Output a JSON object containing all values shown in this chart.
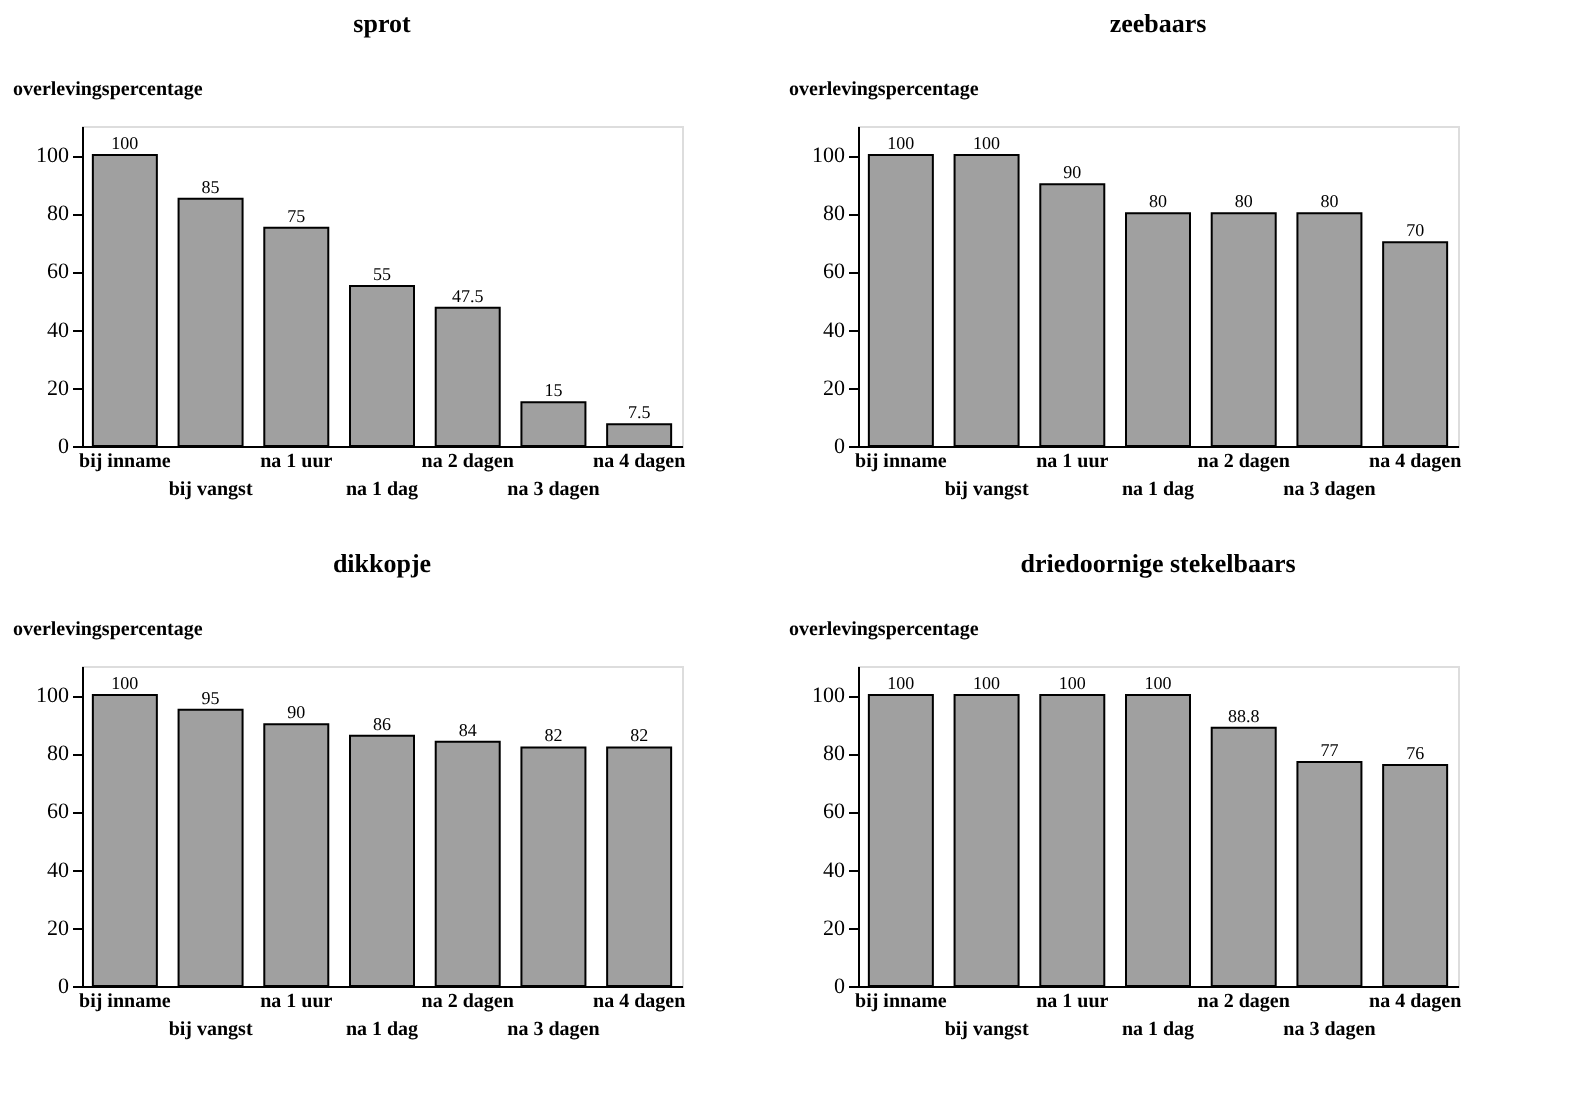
{
  "chart_data": [
    {
      "type": "bar",
      "title": "sprot",
      "ylabel": "overlevingspercentage",
      "categories": [
        "bij inname",
        "bij vangst",
        "na 1 uur",
        "na 1 dag",
        "na 2 dagen",
        "na 3 dagen",
        "na 4 dagen"
      ],
      "values": [
        100,
        85,
        75,
        55,
        47.5,
        15,
        7.5
      ],
      "color": "#a0a0a0",
      "ylim": [
        0,
        110
      ],
      "yticks": [
        0,
        20,
        40,
        60,
        80,
        100
      ],
      "data_labels": true
    },
    {
      "type": "bar",
      "title": "zeebaars",
      "ylabel": "overlevingspercentage",
      "categories": [
        "bij inname",
        "bij vangst",
        "na 1 uur",
        "na 1 dag",
        "na 2 dagen",
        "na 3 dagen",
        "na 4 dagen"
      ],
      "values": [
        100,
        100,
        90,
        80,
        80,
        80,
        70
      ],
      "color": "#a0a0a0",
      "ylim": [
        0,
        110
      ],
      "yticks": [
        0,
        20,
        40,
        60,
        80,
        100
      ],
      "data_labels": true
    },
    {
      "type": "bar",
      "title": "dikkopje",
      "ylabel": "overlevingspercentage",
      "categories": [
        "bij inname",
        "bij vangst",
        "na 1 uur",
        "na 1 dag",
        "na 2 dagen",
        "na 3 dagen",
        "na 4 dagen"
      ],
      "values": [
        100,
        95,
        90,
        86,
        84,
        82,
        82
      ],
      "color": "#a0a0a0",
      "ylim": [
        0,
        110
      ],
      "yticks": [
        0,
        20,
        40,
        60,
        80,
        100
      ],
      "data_labels": true
    },
    {
      "type": "bar",
      "title": "driedoornige stekelbaars",
      "ylabel": "overlevingspercentage",
      "categories": [
        "bij inname",
        "bij vangst",
        "na 1 uur",
        "na 1 dag",
        "na 2 dagen",
        "na 3 dagen",
        "na 4 dagen"
      ],
      "values": [
        100,
        100,
        100,
        100,
        88.8,
        77,
        76
      ],
      "color": "#a0a0a0",
      "ylim": [
        0,
        110
      ],
      "yticks": [
        0,
        20,
        40,
        60,
        80,
        100
      ],
      "data_labels": true
    }
  ]
}
